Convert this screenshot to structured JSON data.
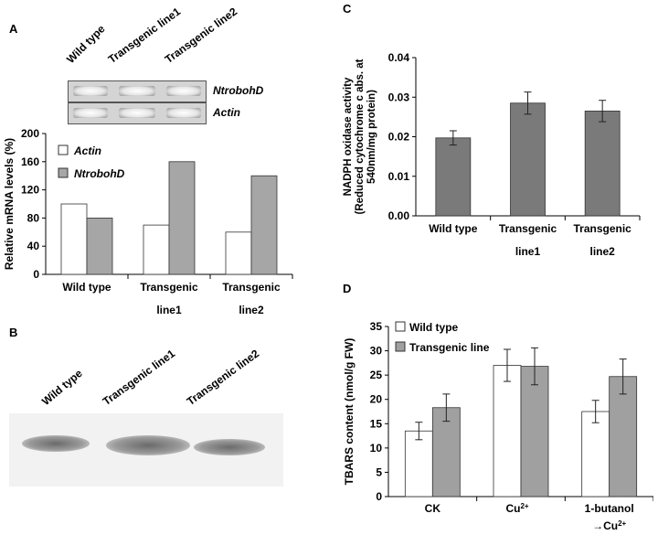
{
  "panels": {
    "A": "A",
    "B": "B",
    "C": "C",
    "D": "D"
  },
  "gel_A": {
    "lanes": [
      "Wild type",
      "Transgenic line1",
      "Transgenic line2"
    ],
    "rows": [
      "NtrobohD",
      "Actin"
    ]
  },
  "blot_B": {
    "lanes": [
      "Wild type",
      "Transgenic line1",
      "Transgenic line2"
    ]
  },
  "chart_data": [
    {
      "panel": "A",
      "type": "bar",
      "categories": [
        "Wild type",
        "Transgenic line1",
        "Transgenic line2"
      ],
      "category_lines": [
        [
          "Wild type"
        ],
        [
          "Transgenic",
          "line1"
        ],
        [
          "Transgenic",
          "line2"
        ]
      ],
      "series": [
        {
          "name": "Actin",
          "values": [
            100,
            70,
            60
          ],
          "color": "#ffffff"
        },
        {
          "name": "NtrobohD",
          "values": [
            80,
            160,
            140
          ],
          "color": "#a6a6a6"
        }
      ],
      "ylabel": "Relative mRNA levels (%)",
      "ylim": [
        0,
        200
      ],
      "yticks": [
        0,
        40,
        80,
        120,
        160,
        200
      ],
      "legend": "top-left",
      "grid": false
    },
    {
      "panel": "C",
      "type": "bar",
      "categories": [
        "Wild type",
        "Transgenic line1",
        "Transgenic line2"
      ],
      "category_lines": [
        [
          "Wild type"
        ],
        [
          "Transgenic",
          "line1"
        ],
        [
          "Transgenic",
          "line2"
        ]
      ],
      "series": [
        {
          "values": [
            0.0197,
            0.0285,
            0.0265
          ],
          "errors": [
            0.0018,
            0.0028,
            0.0027
          ],
          "color": "#7a7a7a"
        }
      ],
      "ylabel": [
        "NADPH oxidase activity",
        "(Reduced cytochrome c abs. at",
        "540nm/mg protein)"
      ],
      "ylim": [
        0,
        0.04
      ],
      "yticks": [
        "0.00",
        "0.01",
        "0.02",
        "0.03",
        "0.04"
      ],
      "grid": false
    },
    {
      "panel": "D",
      "type": "bar",
      "categories": [
        "CK",
        "Cu2+",
        "1-butanol →Cu2+"
      ],
      "series": [
        {
          "name": "Wild type",
          "values": [
            13.5,
            27,
            17.5
          ],
          "errors": [
            1.8,
            3.3,
            2.3
          ],
          "color": "#ffffff"
        },
        {
          "name": "Transgenic line",
          "values": [
            18.3,
            26.8,
            24.7
          ],
          "errors": [
            2.8,
            3.8,
            3.6
          ],
          "color": "#a0a0a0"
        }
      ],
      "ylabel": "TBARS content  (nmol/g FW)",
      "ylim": [
        0,
        35
      ],
      "yticks": [
        0,
        5,
        10,
        15,
        20,
        25,
        30,
        35
      ],
      "legend": "top-left",
      "grid": false
    }
  ]
}
